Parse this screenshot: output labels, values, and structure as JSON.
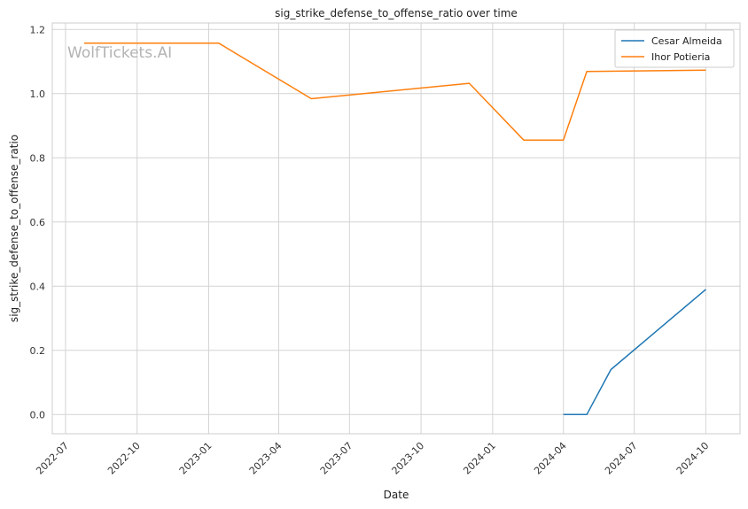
{
  "chart_data": {
    "type": "line",
    "title": "sig_strike_defense_to_offense_ratio over time",
    "xlabel": "Date",
    "ylabel": "sig_strike_defense_to_offense_ratio",
    "watermark": "WolfTickets.AI",
    "xlim": [
      "2022-06-14",
      "2024-11-14"
    ],
    "ylim": [
      -0.06,
      1.22
    ],
    "x_ticks": [
      "2022-07",
      "2022-10",
      "2023-01",
      "2023-04",
      "2023-07",
      "2023-10",
      "2024-01",
      "2024-04",
      "2024-07",
      "2024-10"
    ],
    "y_ticks": [
      "0.0",
      "0.2",
      "0.4",
      "0.6",
      "0.8",
      "1.0",
      "1.2"
    ],
    "grid": true,
    "legend_position": "top-right",
    "series": [
      {
        "name": "Cesar Almeida",
        "color": "#1f77b4",
        "x": [
          "2024-04-01",
          "2024-05-01",
          "2024-06-01",
          "2024-10-01"
        ],
        "y": [
          0.0,
          0.0,
          0.14,
          0.39
        ]
      },
      {
        "name": "Ihor Potieria",
        "color": "#ff7f0e",
        "x": [
          "2022-07-25",
          "2023-01-14",
          "2023-05-13",
          "2023-12-02",
          "2024-02-10",
          "2024-04-01",
          "2024-05-01",
          "2024-10-01"
        ],
        "y": [
          1.157,
          1.157,
          0.984,
          1.032,
          0.855,
          0.855,
          1.069,
          1.073
        ]
      }
    ]
  }
}
